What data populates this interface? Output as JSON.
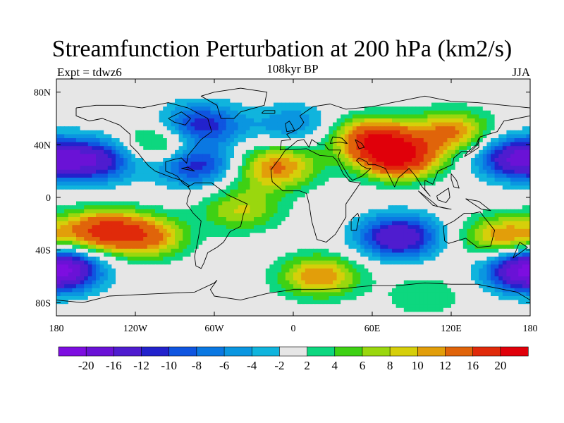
{
  "title": "Streamfunction Perturbation at 200 hPa (km2/s)",
  "subtitle": "108kyr BP",
  "left_title": "Expt = tdwz6",
  "right_title": "JJA",
  "map": {
    "projection": "cylindrical-equidistant",
    "lon_range": [
      -180,
      180
    ],
    "lat_range": [
      -90,
      90
    ],
    "lon_ticks": [
      {
        "value": -180,
        "label": "180"
      },
      {
        "value": -120,
        "label": "120W"
      },
      {
        "value": -60,
        "label": "60W"
      },
      {
        "value": 0,
        "label": "0"
      },
      {
        "value": 60,
        "label": "60E"
      },
      {
        "value": 120,
        "label": "120E"
      },
      {
        "value": 180,
        "label": "180"
      }
    ],
    "lat_ticks": [
      {
        "value": 80,
        "label": "80N"
      },
      {
        "value": 40,
        "label": "40N"
      },
      {
        "value": 0,
        "label": "0"
      },
      {
        "value": -40,
        "label": "40S"
      },
      {
        "value": -80,
        "label": "80S"
      }
    ],
    "background_color": "#e6e6e6"
  },
  "colorbar": {
    "levels": [
      -20,
      -16,
      -12,
      -10,
      -8,
      -6,
      -4,
      -2,
      2,
      4,
      6,
      8,
      10,
      12,
      16,
      20
    ],
    "labels": [
      "-20",
      "-16",
      "-12",
      "-10",
      "-8",
      "-6",
      "-4",
      "-2",
      "2",
      "4",
      "6",
      "8",
      "10",
      "12",
      "16",
      "20"
    ],
    "colors": [
      "#7d0ee0",
      "#6a12d6",
      "#4f1ccf",
      "#2222cc",
      "#0f55e0",
      "#0a78e2",
      "#0a96e0",
      "#10b4dd",
      "#e6e6e6",
      "#0dd77f",
      "#3ed114",
      "#9ad70e",
      "#d6cf0a",
      "#e29e0a",
      "#e0640a",
      "#e02a0a",
      "#e0000a"
    ]
  },
  "field_features": [
    {
      "lon": -150,
      "lat": 28,
      "value": -14
    },
    {
      "lon": -70,
      "lat": 55,
      "value": -12
    },
    {
      "lon": -75,
      "lat": 25,
      "value": -12
    },
    {
      "lon": -100,
      "lat": 40,
      "value": 8
    },
    {
      "lon": -20,
      "lat": 15,
      "value": 4
    },
    {
      "lon": -10,
      "lat": 25,
      "value": 10
    },
    {
      "lon": 0,
      "lat": 55,
      "value": -6
    },
    {
      "lon": 60,
      "lat": 45,
      "value": 16
    },
    {
      "lon": 80,
      "lat": 30,
      "value": 20
    },
    {
      "lon": 120,
      "lat": 50,
      "value": 12
    },
    {
      "lon": 170,
      "lat": 30,
      "value": -16
    },
    {
      "lon": -145,
      "lat": -25,
      "value": 16
    },
    {
      "lon": -110,
      "lat": -30,
      "value": 12
    },
    {
      "lon": -40,
      "lat": -10,
      "value": 8
    },
    {
      "lon": 80,
      "lat": -30,
      "value": -16
    },
    {
      "lon": 20,
      "lat": -60,
      "value": 12
    },
    {
      "lon": 160,
      "lat": -30,
      "value": 12
    },
    {
      "lon": 175,
      "lat": -55,
      "value": -12
    },
    {
      "lon": -175,
      "lat": -55,
      "value": -12
    },
    {
      "lon": -60,
      "lat": -75,
      "value": 2
    },
    {
      "lon": 100,
      "lat": -75,
      "value": 4
    }
  ]
}
